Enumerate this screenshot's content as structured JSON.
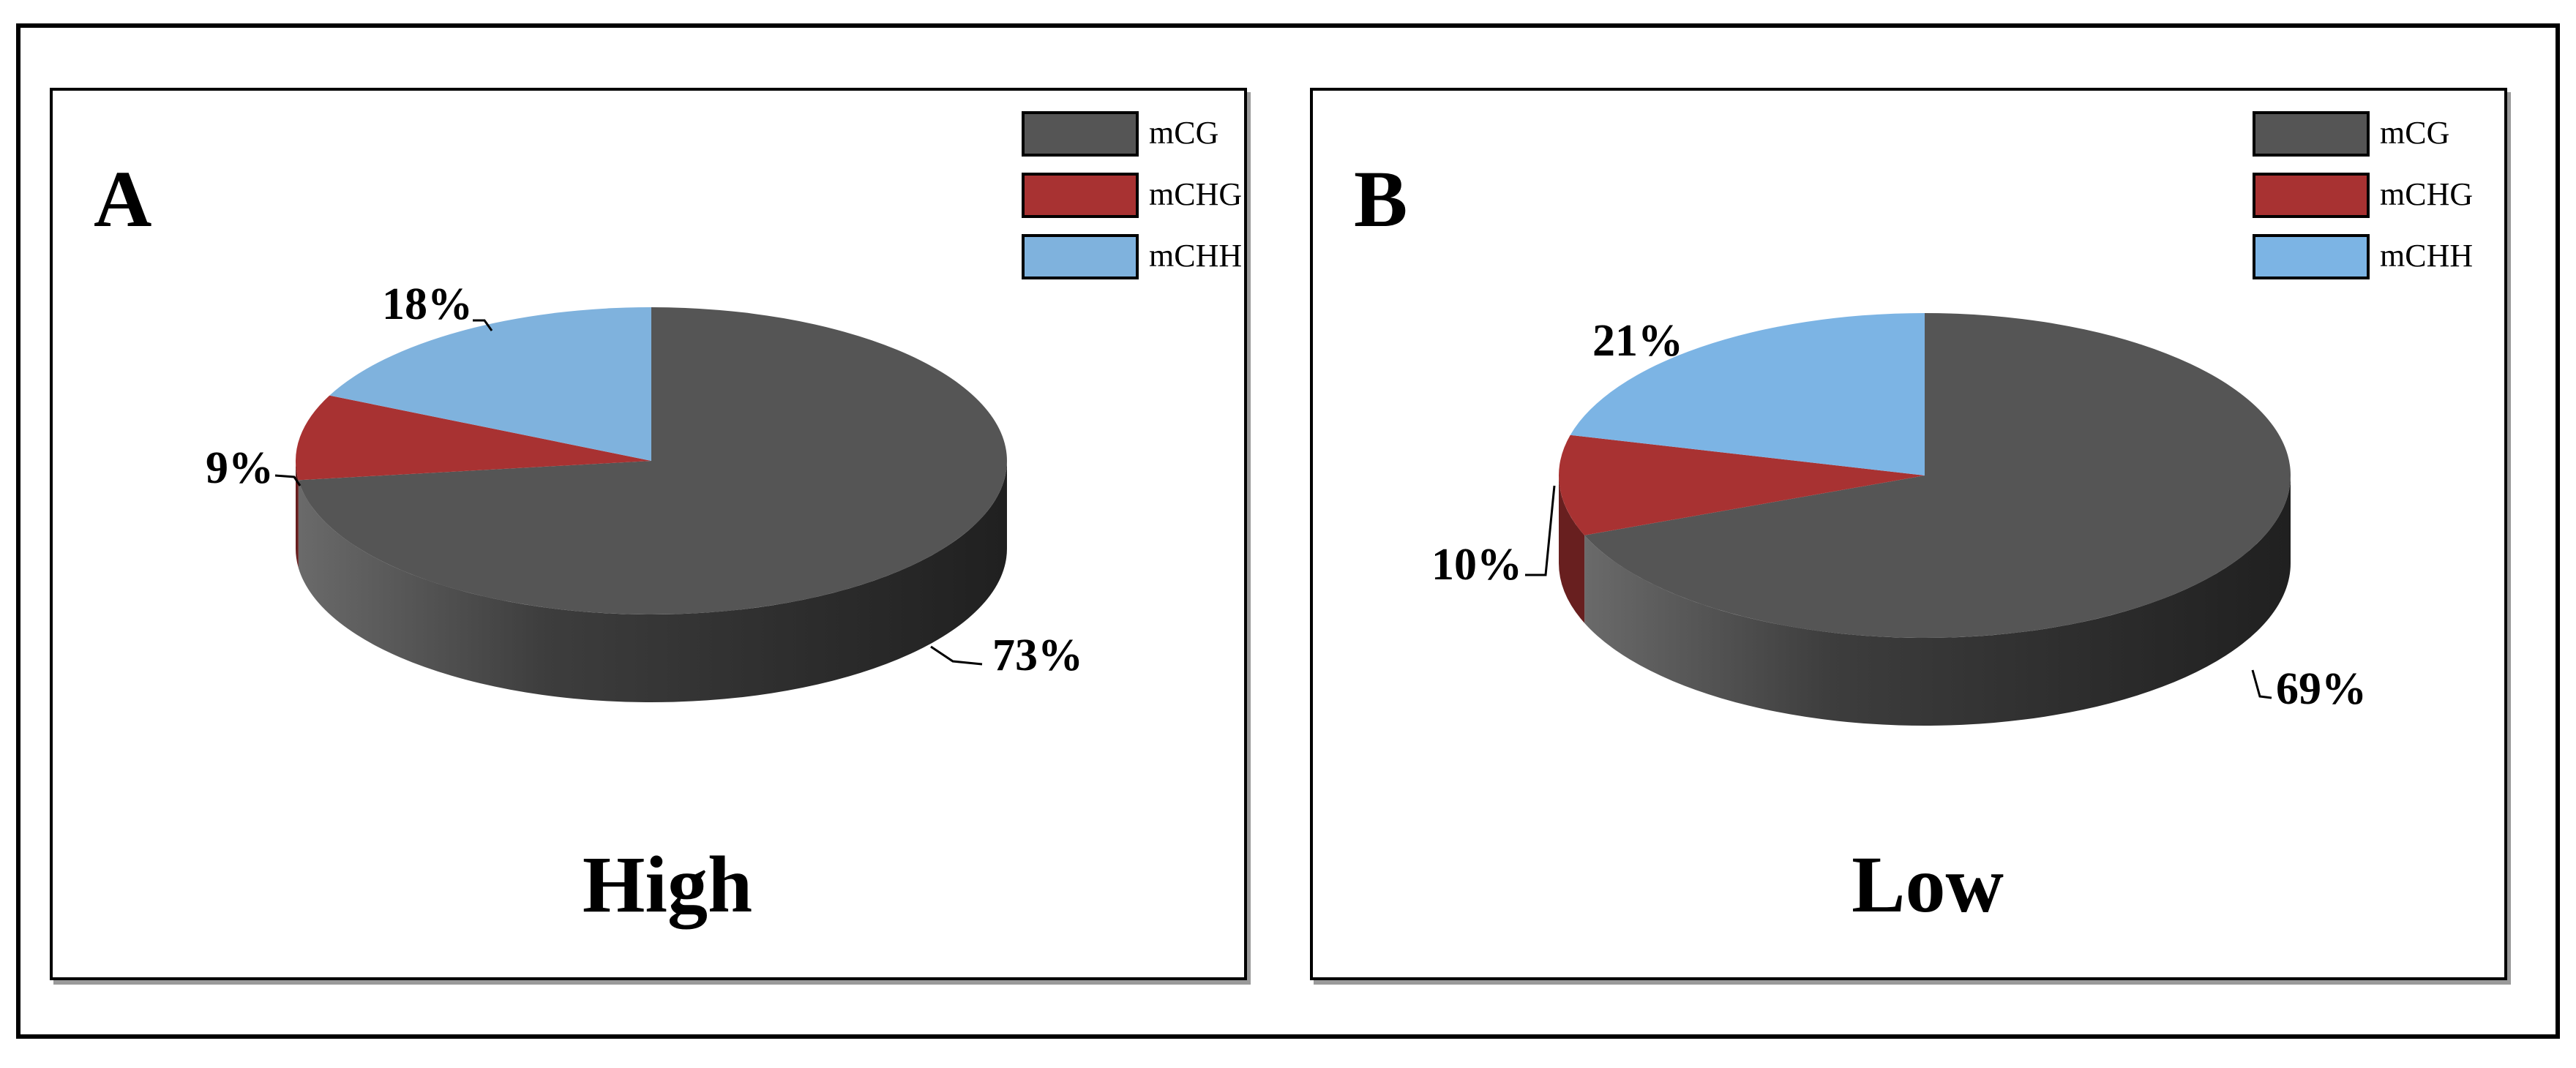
{
  "chart_data": [
    {
      "type": "pie",
      "panel_letter": "A",
      "title": "High",
      "categories": [
        "mCG",
        "mCHG",
        "mCHH"
      ],
      "values": [
        73,
        9,
        18
      ],
      "labels": [
        "73%",
        "9%",
        "18%"
      ],
      "legend": {
        "entries": [
          "mCG",
          "mCHG",
          "mCHH"
        ],
        "position": "top-right"
      },
      "colors": [
        "#555555",
        "#a83232",
        "#7fb2dd"
      ],
      "style": "3d"
    },
    {
      "type": "pie",
      "panel_letter": "B",
      "title": "Low",
      "categories": [
        "mCG",
        "mCHG",
        "mCHH"
      ],
      "values": [
        69,
        10,
        21
      ],
      "labels": [
        "69%",
        "10%",
        "21%"
      ],
      "legend": {
        "entries": [
          "mCG",
          "mCHG",
          "mCHH"
        ],
        "position": "top-right"
      },
      "colors": [
        "#555555",
        "#a83232",
        "#7cb4e4"
      ],
      "style": "3d"
    }
  ]
}
